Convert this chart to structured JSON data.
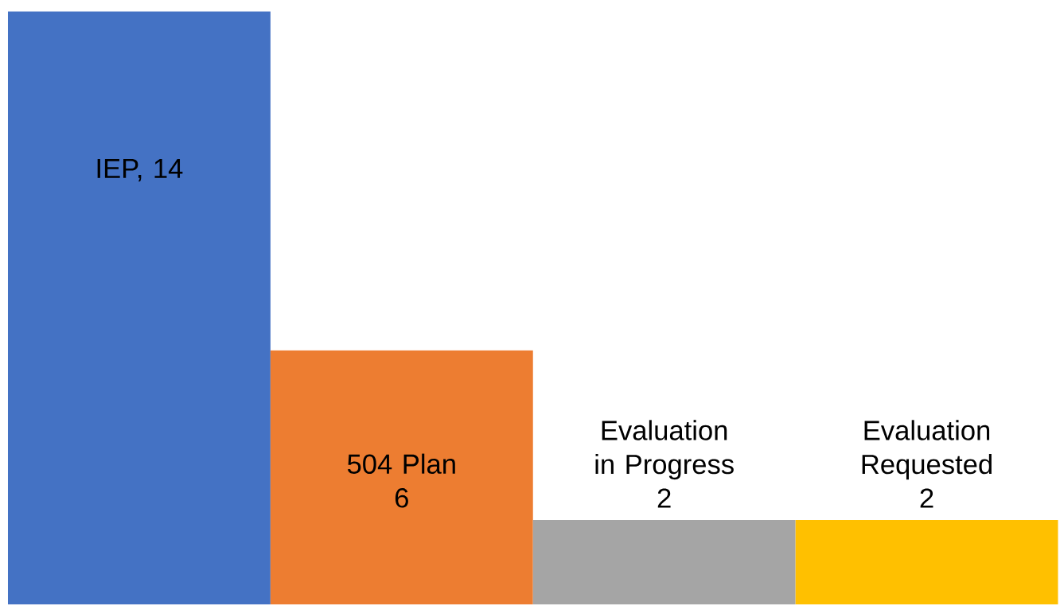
{
  "chart_data": {
    "type": "bar",
    "categories": [
      null,
      "504 Plan",
      "Evaluation in Progress",
      "Evaluation Requested"
    ],
    "values": [
      14,
      6,
      2,
      2
    ],
    "colors": [
      "#4472c4",
      "#ed7d31",
      "#a5a5a5",
      "#ffc000"
    ],
    "value_labels": [
      "IEP, 14",
      "6",
      "2",
      "2"
    ]
  }
}
